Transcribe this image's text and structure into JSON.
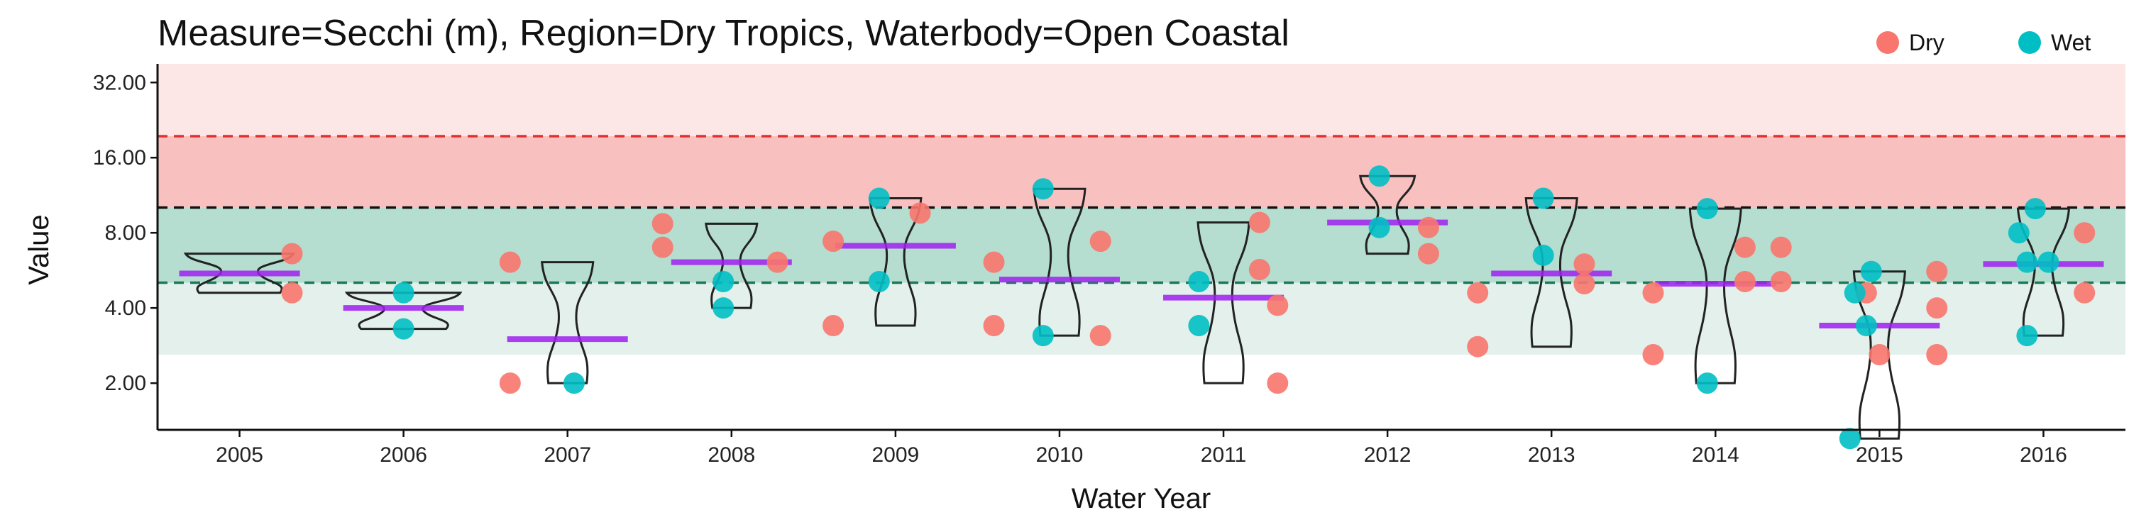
{
  "chart_data": {
    "type": "scatter",
    "title": "Measure=Secchi (m), Region=Dry Tropics, Waterbody=Open Coastal",
    "xlabel": "Water Year",
    "ylabel": "Value",
    "y_scale": "log2",
    "ylim": [
      1.3,
      38
    ],
    "y_ticks": [
      2,
      4,
      8,
      16,
      32
    ],
    "y_tick_labels": [
      "2.00",
      "4.00",
      "8.00",
      "16.00",
      "32.00"
    ],
    "categories": [
      "2005",
      "2006",
      "2007",
      "2008",
      "2009",
      "2010",
      "2011",
      "2012",
      "2013",
      "2014",
      "2015",
      "2016"
    ],
    "legend": {
      "position": "top-right",
      "entries": [
        {
          "name": "Dry",
          "color": "#f8766d"
        },
        {
          "name": "Wet",
          "color": "#00bfc4"
        }
      ]
    },
    "bands": [
      {
        "from": 2.6,
        "to": 5.05,
        "color": "#e3f0ec"
      },
      {
        "from": 5.05,
        "to": 10.1,
        "color": "#b5ddd0"
      },
      {
        "from": 10.1,
        "to": 19.5,
        "color": "#f9c0c0"
      },
      {
        "from": 19.5,
        "to": 38,
        "color": "#fde6e6"
      }
    ],
    "reference_lines": [
      {
        "value": 19.5,
        "color": "#e03030"
      },
      {
        "value": 10.1,
        "color": "#111111"
      },
      {
        "value": 5.05,
        "color": "#1a7a55"
      }
    ],
    "series": [
      {
        "name": "Dry",
        "color": "#f8766d",
        "points": [
          {
            "year": "2005",
            "offset": 0.32,
            "value": 6.6
          },
          {
            "year": "2005",
            "offset": 0.32,
            "value": 4.6
          },
          {
            "year": "2007",
            "offset": -0.35,
            "value": 6.1
          },
          {
            "year": "2007",
            "offset": -0.35,
            "value": 2.0
          },
          {
            "year": "2008",
            "offset": -0.42,
            "value": 8.7
          },
          {
            "year": "2008",
            "offset": -0.42,
            "value": 7.0
          },
          {
            "year": "2008",
            "offset": 0.28,
            "value": 6.1
          },
          {
            "year": "2009",
            "offset": -0.38,
            "value": 7.4
          },
          {
            "year": "2009",
            "offset": -0.38,
            "value": 3.4
          },
          {
            "year": "2009",
            "offset": 0.15,
            "value": 9.6
          },
          {
            "year": "2010",
            "offset": -0.4,
            "value": 6.1
          },
          {
            "year": "2010",
            "offset": -0.4,
            "value": 3.4
          },
          {
            "year": "2010",
            "offset": 0.25,
            "value": 7.4
          },
          {
            "year": "2010",
            "offset": 0.25,
            "value": 3.1
          },
          {
            "year": "2011",
            "offset": 0.22,
            "value": 8.8
          },
          {
            "year": "2011",
            "offset": 0.22,
            "value": 5.7
          },
          {
            "year": "2011",
            "offset": 0.33,
            "value": 4.1
          },
          {
            "year": "2011",
            "offset": 0.33,
            "value": 2.0
          },
          {
            "year": "2012",
            "offset": 0.25,
            "value": 8.4
          },
          {
            "year": "2012",
            "offset": 0.25,
            "value": 6.6
          },
          {
            "year": "2013",
            "offset": -0.45,
            "value": 4.6
          },
          {
            "year": "2013",
            "offset": -0.45,
            "value": 2.8
          },
          {
            "year": "2013",
            "offset": 0.2,
            "value": 6.0
          },
          {
            "year": "2013",
            "offset": 0.2,
            "value": 5.0
          },
          {
            "year": "2014",
            "offset": -0.38,
            "value": 4.6
          },
          {
            "year": "2014",
            "offset": -0.38,
            "value": 2.6
          },
          {
            "year": "2014",
            "offset": 0.18,
            "value": 7.0
          },
          {
            "year": "2014",
            "offset": 0.18,
            "value": 5.1
          },
          {
            "year": "2014",
            "offset": 0.4,
            "value": 7.0
          },
          {
            "year": "2014",
            "offset": 0.4,
            "value": 5.1
          },
          {
            "year": "2015",
            "offset": -0.08,
            "value": 4.6
          },
          {
            "year": "2015",
            "offset": 0.0,
            "value": 2.6
          },
          {
            "year": "2015",
            "offset": 0.35,
            "value": 5.6
          },
          {
            "year": "2015",
            "offset": 0.35,
            "value": 4.0
          },
          {
            "year": "2015",
            "offset": 0.35,
            "value": 2.6
          },
          {
            "year": "2016",
            "offset": 0.25,
            "value": 8.0
          },
          {
            "year": "2016",
            "offset": 0.25,
            "value": 4.6
          }
        ]
      },
      {
        "name": "Wet",
        "color": "#00bfc4",
        "points": [
          {
            "year": "2006",
            "offset": 0.0,
            "value": 4.6
          },
          {
            "year": "2006",
            "offset": 0.0,
            "value": 3.3
          },
          {
            "year": "2007",
            "offset": 0.04,
            "value": 2.0
          },
          {
            "year": "2008",
            "offset": -0.05,
            "value": 5.1
          },
          {
            "year": "2008",
            "offset": -0.05,
            "value": 4.0
          },
          {
            "year": "2009",
            "offset": -0.1,
            "value": 11.0
          },
          {
            "year": "2009",
            "offset": -0.1,
            "value": 5.1
          },
          {
            "year": "2010",
            "offset": -0.1,
            "value": 12.0
          },
          {
            "year": "2010",
            "offset": -0.1,
            "value": 3.1
          },
          {
            "year": "2011",
            "offset": -0.15,
            "value": 5.1
          },
          {
            "year": "2011",
            "offset": -0.15,
            "value": 3.4
          },
          {
            "year": "2012",
            "offset": -0.05,
            "value": 13.5
          },
          {
            "year": "2012",
            "offset": -0.05,
            "value": 8.4
          },
          {
            "year": "2013",
            "offset": -0.05,
            "value": 11.0
          },
          {
            "year": "2013",
            "offset": -0.05,
            "value": 6.5
          },
          {
            "year": "2014",
            "offset": -0.05,
            "value": 10.0
          },
          {
            "year": "2014",
            "offset": -0.05,
            "value": 2.0
          },
          {
            "year": "2015",
            "offset": -0.05,
            "value": 5.6
          },
          {
            "year": "2015",
            "offset": -0.15,
            "value": 4.6
          },
          {
            "year": "2015",
            "offset": -0.08,
            "value": 3.4
          },
          {
            "year": "2015",
            "offset": -0.18,
            "value": 1.2
          },
          {
            "year": "2016",
            "offset": -0.15,
            "value": 8.0
          },
          {
            "year": "2016",
            "offset": -0.1,
            "value": 6.1
          },
          {
            "year": "2016",
            "offset": 0.03,
            "value": 6.1
          },
          {
            "year": "2016",
            "offset": -0.05,
            "value": 10.0
          },
          {
            "year": "2016",
            "offset": -0.1,
            "value": 3.1
          }
        ]
      }
    ],
    "medians": [
      {
        "year": "2005",
        "value": 5.5
      },
      {
        "year": "2006",
        "value": 4.0
      },
      {
        "year": "2007",
        "value": 3.0
      },
      {
        "year": "2008",
        "value": 6.1
      },
      {
        "year": "2009",
        "value": 7.1
      },
      {
        "year": "2010",
        "value": 5.2
      },
      {
        "year": "2011",
        "value": 4.4
      },
      {
        "year": "2012",
        "value": 8.8
      },
      {
        "year": "2013",
        "value": 5.5
      },
      {
        "year": "2014",
        "value": 5.0
      },
      {
        "year": "2015",
        "value": 3.4
      },
      {
        "year": "2016",
        "value": 6.0
      }
    ],
    "violins": [
      {
        "year": "2005",
        "min": 4.6,
        "max": 6.6
      },
      {
        "year": "2006",
        "min": 3.3,
        "max": 4.6
      },
      {
        "year": "2007",
        "min": 2.0,
        "max": 6.1
      },
      {
        "year": "2008",
        "min": 4.0,
        "max": 8.7
      },
      {
        "year": "2009",
        "min": 3.4,
        "max": 11.0
      },
      {
        "year": "2010",
        "min": 3.1,
        "max": 12.0
      },
      {
        "year": "2011",
        "min": 2.0,
        "max": 8.8
      },
      {
        "year": "2012",
        "min": 6.6,
        "max": 13.5
      },
      {
        "year": "2013",
        "min": 2.8,
        "max": 11.0
      },
      {
        "year": "2014",
        "min": 2.0,
        "max": 10.0
      },
      {
        "year": "2015",
        "min": 1.2,
        "max": 5.6
      },
      {
        "year": "2016",
        "min": 3.1,
        "max": 10.0
      }
    ]
  }
}
